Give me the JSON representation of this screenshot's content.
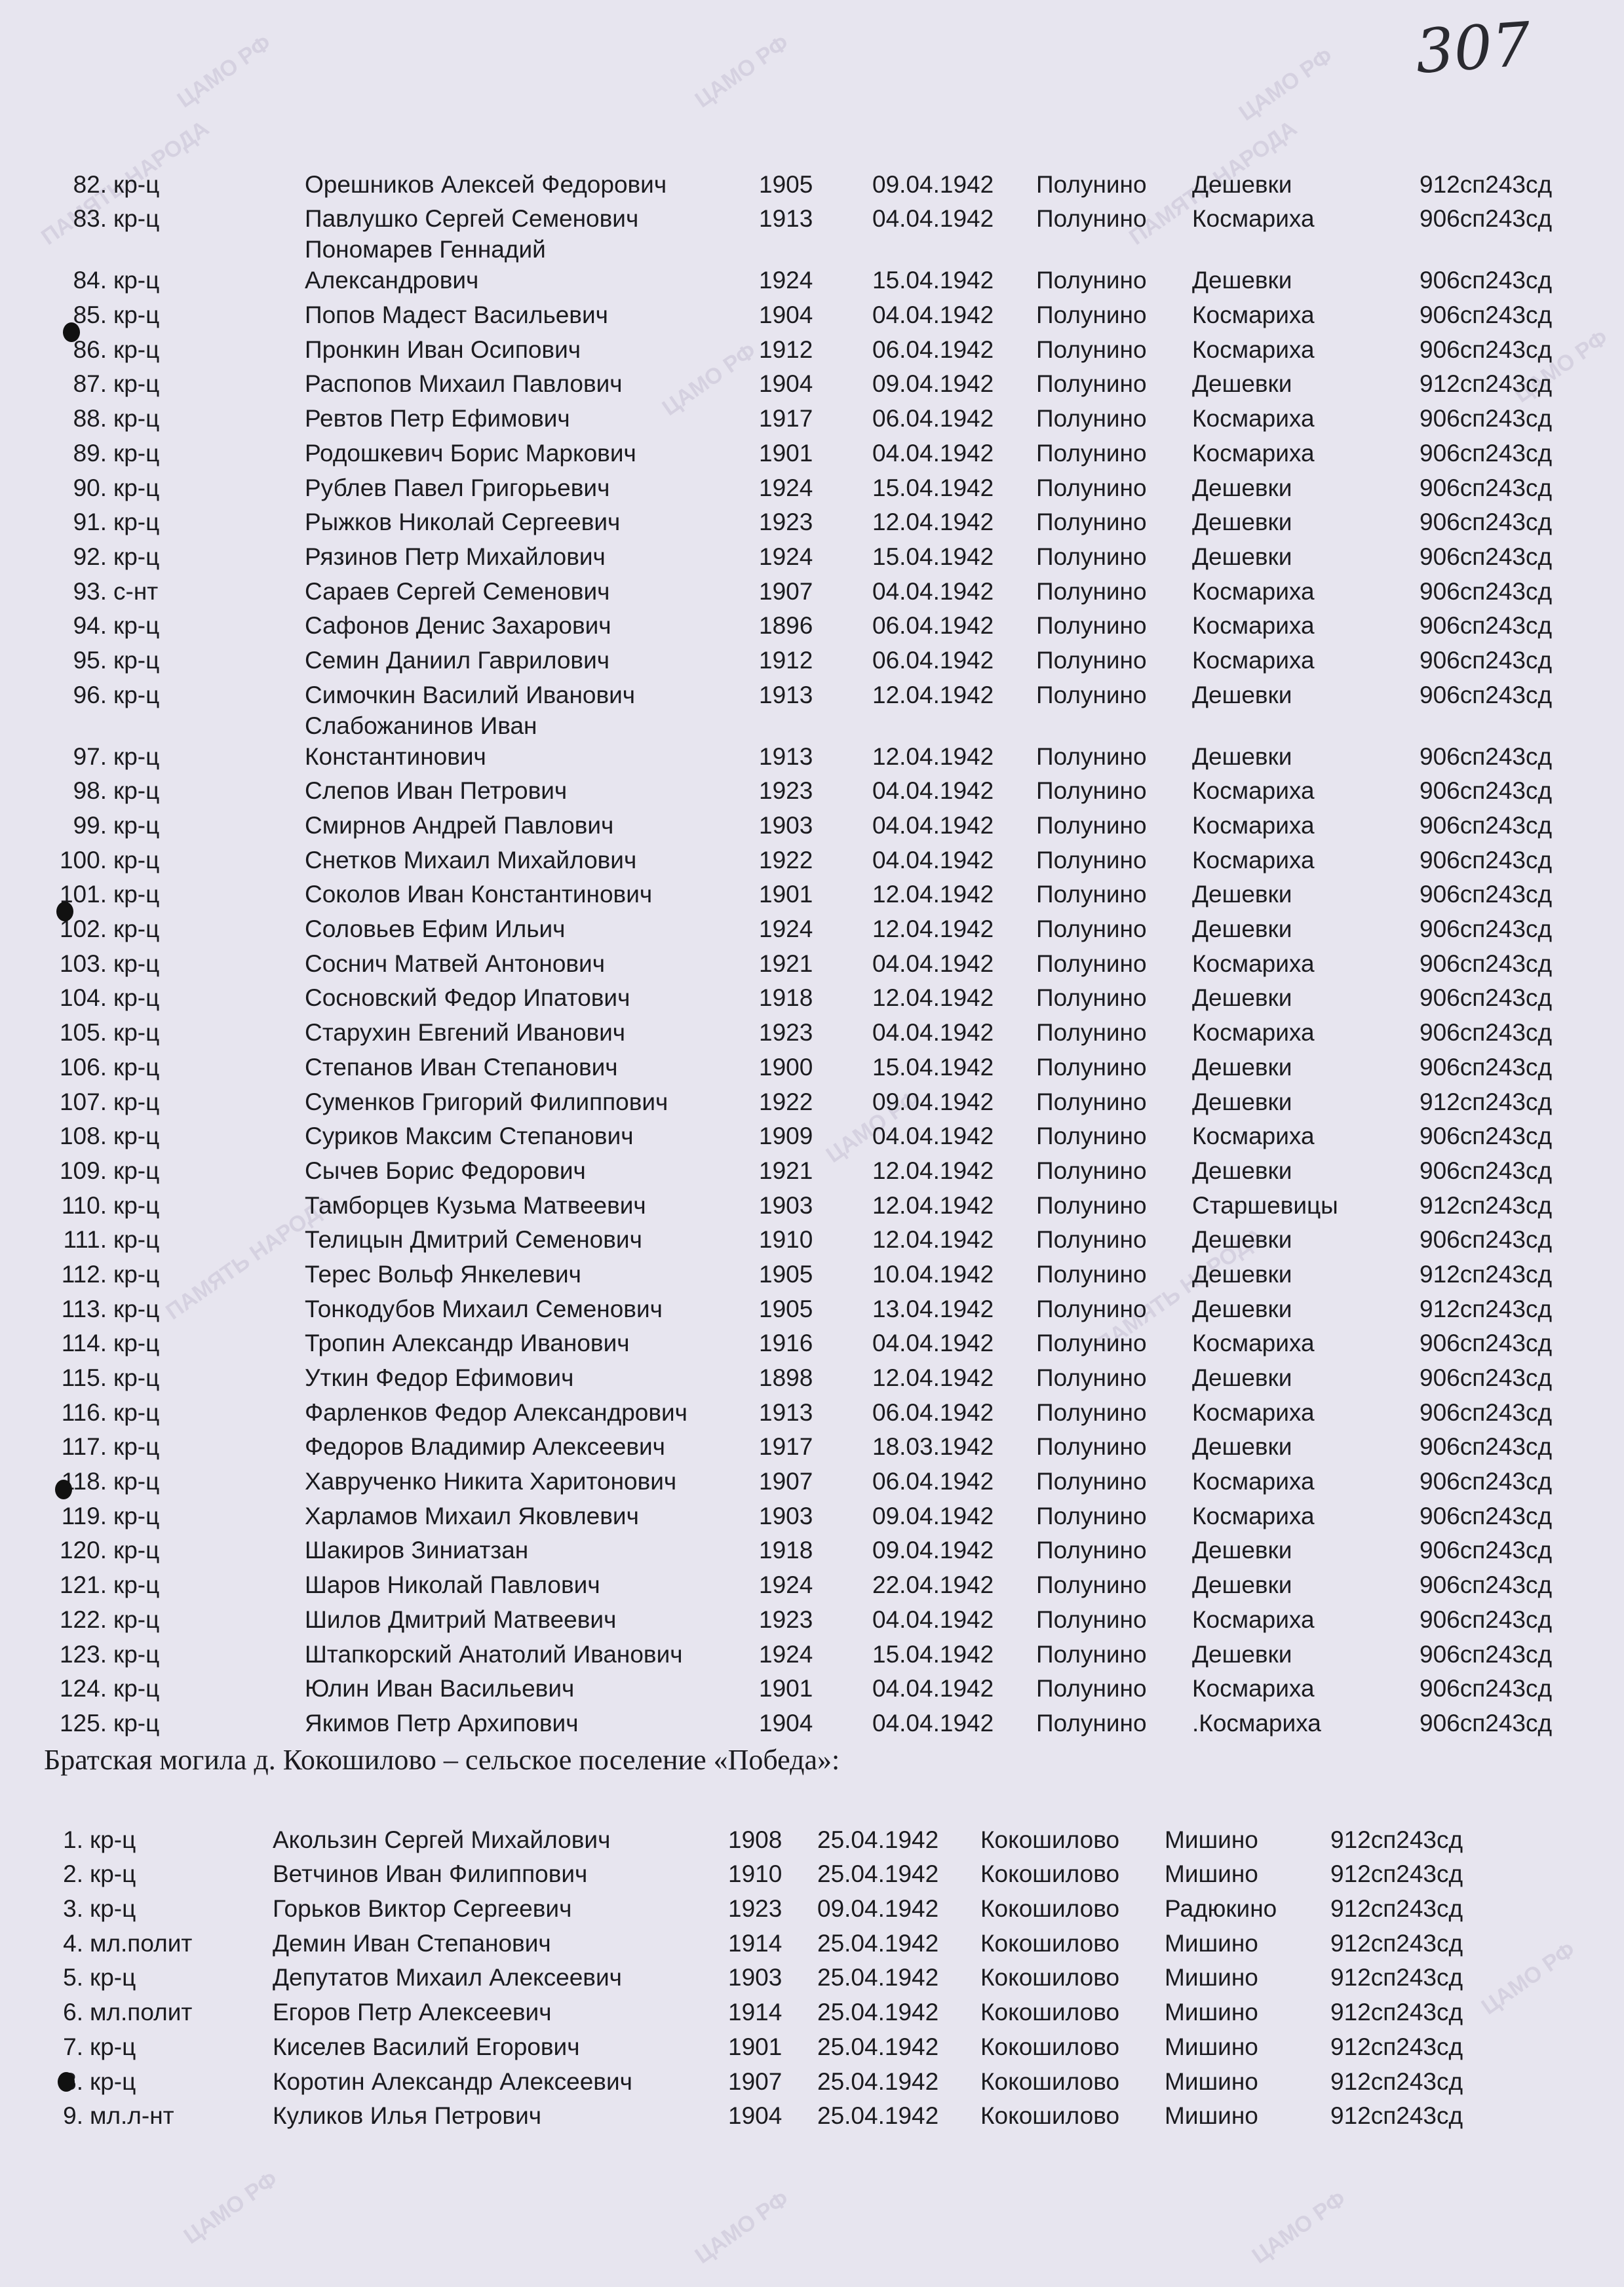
{
  "page_number": "307",
  "watermark": "ЦАМО РФ",
  "watermark2": "ПАМЯТЬ НАРОДА",
  "section1": {
    "rows": [
      [
        "82.",
        "кр-ц",
        "Орешников Алексей Федорович",
        "1905",
        "09.04.1942",
        "Полунино",
        "Дешевки",
        "912сп243сд"
      ],
      [
        "83.",
        "кр-ц",
        "Павлушко Сергей Семенович",
        "1913",
        "04.04.1942",
        "Полунино",
        "Космариха",
        "906сп243сд"
      ],
      [
        "84.",
        "кр-ц",
        "Пономарев Геннадий\nАлександрович",
        "1924",
        "15.04.1942",
        "Полунино",
        "Дешевки",
        "906сп243сд"
      ],
      [
        "85.",
        "кр-ц",
        "Попов Мадест Васильевич",
        "1904",
        "04.04.1942",
        "Полунино",
        "Космариха",
        "906сп243сд"
      ],
      [
        "86.",
        "кр-ц",
        "Пронкин Иван Осипович",
        "1912",
        "06.04.1942",
        "Полунино",
        "Космариха",
        "906сп243сд"
      ],
      [
        "87.",
        "кр-ц",
        "Распопов Михаил Павлович",
        "1904",
        "09.04.1942",
        "Полунино",
        "Дешевки",
        "912сп243сд"
      ],
      [
        "88.",
        "кр-ц",
        "Ревтов Петр Ефимович",
        "1917",
        "06.04.1942",
        "Полунино",
        "Космариха",
        "906сп243сд"
      ],
      [
        "89.",
        "кр-ц",
        "Родошкевич Борис Маркович",
        "1901",
        "04.04.1942",
        "Полунино",
        "Космариха",
        "906сп243сд"
      ],
      [
        "90.",
        "кр-ц",
        "Рублев Павел Григорьевич",
        "1924",
        "15.04.1942",
        "Полунино",
        "Дешевки",
        "906сп243сд"
      ],
      [
        "91.",
        "кр-ц",
        "Рыжков Николай Сергеевич",
        "1923",
        "12.04.1942",
        "Полунино",
        "Дешевки",
        "906сп243сд"
      ],
      [
        "92.",
        "кр-ц",
        "Рязинов Петр Михайлович",
        "1924",
        "15.04.1942",
        "Полунино",
        "Дешевки",
        "906сп243сд"
      ],
      [
        "93.",
        "с-нт",
        "Сараев Сергей Семенович",
        "1907",
        "04.04.1942",
        "Полунино",
        "Космариха",
        "906сп243сд"
      ],
      [
        "94.",
        "кр-ц",
        "Сафонов Денис Захарович",
        "1896",
        "06.04.1942",
        "Полунино",
        "Космариха",
        "906сп243сд"
      ],
      [
        "95.",
        "кр-ц",
        "Семин Даниил Гаврилович",
        "1912",
        "06.04.1942",
        "Полунино",
        "Космариха",
        "906сп243сд"
      ],
      [
        "96.",
        "кр-ц",
        "Симочкин Василий Иванович",
        "1913",
        "12.04.1942",
        "Полунино",
        "Дешевки",
        "906сп243сд"
      ],
      [
        "97.",
        "кр-ц",
        "Слабожанинов Иван\nКонстантинович",
        "1913",
        "12.04.1942",
        "Полунино",
        "Дешевки",
        "906сп243сд"
      ],
      [
        "98.",
        "кр-ц",
        "Слепов Иван Петрович",
        "1923",
        "04.04.1942",
        "Полунино",
        "Космариха",
        "906сп243сд"
      ],
      [
        "99.",
        "кр-ц",
        "Смирнов Андрей Павлович",
        "1903",
        "04.04.1942",
        "Полунино",
        "Космариха",
        "906сп243сд"
      ],
      [
        "100.",
        "кр-ц",
        "Снетков Михаил Михайлович",
        "1922",
        "04.04.1942",
        "Полунино",
        "Космариха",
        "906сп243сд"
      ],
      [
        "101.",
        "кр-ц",
        "Соколов Иван Константинович",
        "1901",
        "12.04.1942",
        "Полунино",
        "Дешевки",
        "906сп243сд"
      ],
      [
        "102.",
        "кр-ц",
        "Соловьев Ефим Ильич",
        "1924",
        "12.04.1942",
        "Полунино",
        "Дешевки",
        "906сп243сд"
      ],
      [
        "103.",
        "кр-ц",
        "Соснич Матвей Антонович",
        "1921",
        "04.04.1942",
        "Полунино",
        "Космариха",
        "906сп243сд"
      ],
      [
        "104.",
        "кр-ц",
        "Сосновский Федор Ипатович",
        "1918",
        "12.04.1942",
        "Полунино",
        "Дешевки",
        "906сп243сд"
      ],
      [
        "105.",
        "кр-ц",
        "Старухин Евгений Иванович",
        "1923",
        "04.04.1942",
        "Полунино",
        "Космариха",
        "906сп243сд"
      ],
      [
        "106.",
        "кр-ц",
        "Степанов Иван Степанович",
        "1900",
        "15.04.1942",
        "Полунино",
        "Дешевки",
        "906сп243сд"
      ],
      [
        "107.",
        "кр-ц",
        "Суменков Григорий Филиппович",
        "1922",
        "09.04.1942",
        "Полунино",
        "Дешевки",
        "912сп243сд"
      ],
      [
        "108.",
        "кр-ц",
        "Суриков Максим Степанович",
        "1909",
        "04.04.1942",
        "Полунино",
        "Космариха",
        "906сп243сд"
      ],
      [
        "109.",
        "кр-ц",
        "Сычев Борис Федорович",
        "1921",
        "12.04.1942",
        "Полунино",
        "Дешевки",
        "906сп243сд"
      ],
      [
        "110.",
        "кр-ц",
        "Тамборцев Кузьма Матвеевич",
        "1903",
        "12.04.1942",
        "Полунино",
        "Старшевицы",
        "912сп243сд"
      ],
      [
        "111.",
        "кр-ц",
        "Телицын Дмитрий Семенович",
        "1910",
        "12.04.1942",
        "Полунино",
        "Дешевки",
        "906сп243сд"
      ],
      [
        "112.",
        "кр-ц",
        "Терес Вольф Янкелевич",
        "1905",
        "10.04.1942",
        "Полунино",
        "Дешевки",
        "912сп243сд"
      ],
      [
        "113.",
        "кр-ц",
        "Тонкодубов Михаил Семенович",
        "1905",
        "13.04.1942",
        "Полунино",
        "Дешевки",
        "912сп243сд"
      ],
      [
        "114.",
        "кр-ц",
        "Тропин Александр Иванович",
        "1916",
        "04.04.1942",
        "Полунино",
        "Космариха",
        "906сп243сд"
      ],
      [
        "115.",
        "кр-ц",
        "Уткин Федор Ефимович",
        "1898",
        "12.04.1942",
        "Полунино",
        "Дешевки",
        "906сп243сд"
      ],
      [
        "116.",
        "кр-ц",
        "Фарленков Федор Александрович",
        "1913",
        "06.04.1942",
        "Полунино",
        "Космариха",
        "906сп243сд"
      ],
      [
        "117.",
        "кр-ц",
        "Федоров Владимир Алексеевич",
        "1917",
        "18.03.1942",
        "Полунино",
        "Дешевки",
        "906сп243сд"
      ],
      [
        "118.",
        "кр-ц",
        "Хаврученко Никита Харитонович",
        "1907",
        "06.04.1942",
        "Полунино",
        "Космариха",
        "906сп243сд"
      ],
      [
        "119.",
        "кр-ц",
        "Харламов Михаил Яковлевич",
        "1903",
        "09.04.1942",
        "Полунино",
        "Космариха",
        "906сп243сд"
      ],
      [
        "120.",
        "кр-ц",
        "Шакиров Зиниатзан",
        "1918",
        "09.04.1942",
        "Полунино",
        "Дешевки",
        "906сп243сд"
      ],
      [
        "121.",
        "кр-ц",
        "Шаров Николай Павлович",
        "1924",
        "22.04.1942",
        "Полунино",
        "Дешевки",
        "906сп243сд"
      ],
      [
        "122.",
        "кр-ц",
        "Шилов Дмитрий Матвеевич",
        "1923",
        "04.04.1942",
        "Полунино",
        "Космариха",
        "906сп243сд"
      ],
      [
        "123.",
        "кр-ц",
        "Штапкорский Анатолий Иванович",
        "1924",
        "15.04.1942",
        "Полунино",
        "Дешевки",
        "906сп243сд"
      ],
      [
        "124.",
        "кр-ц",
        "Юлин Иван Васильевич",
        "1901",
        "04.04.1942",
        "Полунино",
        "Космариха",
        "906сп243сд"
      ],
      [
        "125.",
        "кр-ц",
        "Якимов Петр Архипович",
        "1904",
        "04.04.1942",
        "Полунино",
        ".Космариха",
        "906сп243сд"
      ]
    ]
  },
  "section2": {
    "heading": "Братская могила д. Кокошилово – сельское поселение «Победа»:",
    "rows": [
      [
        "1.",
        "кр-ц",
        "Акользин Сергей Михайлович",
        "1908",
        "25.04.1942",
        "Кокошилово",
        "Мишино",
        "912сп243сд"
      ],
      [
        "2.",
        "кр-ц",
        "Ветчинов Иван Филиппович",
        "1910",
        "25.04.1942",
        "Кокошилово",
        "Мишино",
        "912сп243сд"
      ],
      [
        "3.",
        "кр-ц",
        "Горьков Виктор Сергеевич",
        "1923",
        "09.04.1942",
        "Кокошилово",
        "Радюкино",
        "912сп243сд"
      ],
      [
        "4.",
        "мл.полит",
        "Демин Иван Степанович",
        "1914",
        "25.04.1942",
        "Кокошилово",
        "Мишино",
        "912сп243сд"
      ],
      [
        "5.",
        "кр-ц",
        "Депутатов Михаил Алексеевич",
        "1903",
        "25.04.1942",
        "Кокошилово",
        "Мишино",
        "912сп243сд"
      ],
      [
        "6.",
        "мл.полит",
        "Егоров Петр Алексеевич",
        "1914",
        "25.04.1942",
        "Кокошилово",
        "Мишино",
        "912сп243сд"
      ],
      [
        "7.",
        "кр-ц",
        "Киселев Василий Егорович",
        "1901",
        "25.04.1942",
        "Кокошилово",
        "Мишино",
        "912сп243сд"
      ],
      [
        "8.",
        "кр-ц",
        "Коротин Александр Алексеевич",
        "1907",
        "25.04.1942",
        "Кокошилово",
        "Мишино",
        "912сп243сд"
      ],
      [
        "9.",
        "мл.л-нт",
        "Куликов Илья Петрович",
        "1904",
        "25.04.1942",
        "Кокошилово",
        "Мишино",
        "912сп243сд"
      ]
    ]
  }
}
